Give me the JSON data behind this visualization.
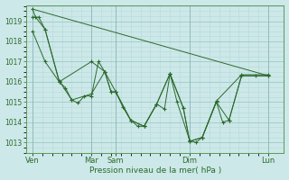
{
  "background_color": "#cce8e8",
  "grid_color_major": "#a0c8c8",
  "grid_color_minor": "#b8d8d8",
  "line_color": "#2d6a2d",
  "title": "Pression niveau de la mer( hPa )",
  "ylim": [
    1012.5,
    1019.8
  ],
  "yticks": [
    1013,
    1014,
    1015,
    1016,
    1017,
    1018,
    1019
  ],
  "x_day_labels": [
    "Ven",
    "Mar",
    "Sam",
    "Dim",
    "Lun"
  ],
  "x_day_positions": [
    0.0,
    0.375,
    0.53,
    1.0,
    1.5
  ],
  "xlim": [
    -0.04,
    1.6
  ],
  "series1_x": [
    0.0,
    0.02,
    0.08,
    0.17,
    0.21,
    0.25,
    0.29,
    0.33,
    0.375,
    0.42,
    0.46,
    0.5,
    0.53,
    0.575,
    0.625,
    0.67,
    0.71,
    0.79,
    0.84,
    0.875,
    0.92,
    1.0,
    1.04,
    1.08,
    1.17,
    1.21,
    1.25,
    1.33,
    1.42,
    1.5
  ],
  "series1_y": [
    1019.6,
    1019.2,
    1018.6,
    1016.0,
    1015.7,
    1015.1,
    1014.95,
    1015.3,
    1015.3,
    1017.0,
    1016.5,
    1015.5,
    1015.5,
    1014.75,
    1014.1,
    1013.8,
    1013.8,
    1014.9,
    1014.65,
    1016.4,
    1015.0,
    1013.1,
    1013.0,
    1013.25,
    1015.0,
    1014.0,
    1014.1,
    1016.3,
    1016.3,
    1016.3
  ],
  "series2_x": [
    0.0,
    1.5
  ],
  "series2_y": [
    1019.6,
    1016.3
  ],
  "series3_x": [
    0.0,
    0.08,
    0.17,
    0.375,
    0.46,
    0.5,
    0.53,
    0.625,
    0.71,
    0.79,
    0.875,
    0.96,
    1.0,
    1.08,
    1.17,
    1.25,
    1.33,
    1.5
  ],
  "series3_y": [
    1018.5,
    1017.0,
    1016.0,
    1017.0,
    1016.5,
    1015.5,
    1015.5,
    1014.1,
    1013.8,
    1014.9,
    1016.4,
    1014.7,
    1013.05,
    1013.25,
    1015.0,
    1014.1,
    1016.3,
    1016.3
  ],
  "series4_x": [
    0.0,
    0.04,
    0.08,
    0.17,
    0.25,
    0.375,
    0.46,
    0.53,
    0.625,
    0.71,
    0.79,
    0.875,
    0.96,
    1.0,
    1.08,
    1.17,
    1.33,
    1.5
  ],
  "series4_y": [
    1019.2,
    1019.2,
    1018.6,
    1016.05,
    1015.1,
    1015.4,
    1016.5,
    1015.5,
    1014.1,
    1013.8,
    1014.9,
    1016.4,
    1014.7,
    1013.05,
    1013.25,
    1015.05,
    1016.35,
    1016.35
  ],
  "figsize": [
    3.2,
    2.0
  ],
  "dpi": 100
}
